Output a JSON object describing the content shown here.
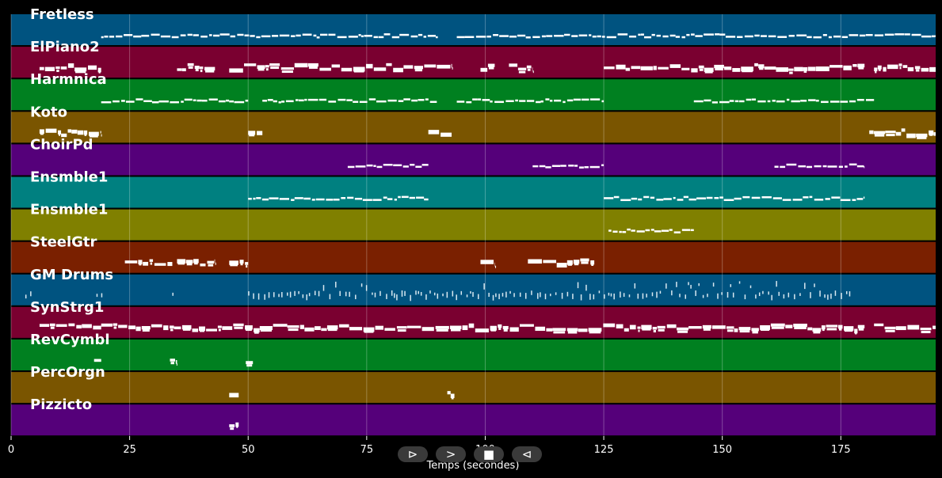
{
  "chart_data": {
    "type": "piano-roll",
    "xlabel": "Temps (secondes)",
    "xlim": [
      0,
      195
    ],
    "xticks": [
      0,
      25,
      50,
      75,
      100,
      125,
      150,
      175
    ],
    "xtick_labels": [
      "0",
      "25",
      "50",
      "75",
      "100",
      "125",
      "150",
      "175"
    ],
    "grid": "vertical",
    "tracks": [
      {
        "name": "Fretless",
        "color": "#005380",
        "density": "sparse",
        "segments": [
          [
            19,
            90
          ],
          [
            94,
            195
          ]
        ]
      },
      {
        "name": "ElPiano2",
        "color": "#7a0030",
        "density": "dense",
        "segments": [
          [
            6,
            19
          ],
          [
            35,
            43
          ],
          [
            46,
            93
          ],
          [
            99,
            102
          ],
          [
            105,
            110
          ],
          [
            125,
            180
          ],
          [
            182,
            195
          ]
        ]
      },
      {
        "name": "Harmnica",
        "color": "#008020",
        "density": "sparse",
        "segments": [
          [
            19,
            50
          ],
          [
            53,
            90
          ],
          [
            94,
            125
          ],
          [
            144,
            182
          ]
        ]
      },
      {
        "name": "Koto",
        "color": "#7a5500",
        "density": "dense",
        "segments": [
          [
            6,
            19
          ],
          [
            50,
            53
          ],
          [
            88,
            93
          ],
          [
            181,
            195
          ]
        ]
      },
      {
        "name": "ChoirPd",
        "color": "#55007a",
        "density": "sparse",
        "segments": [
          [
            71,
            88
          ],
          [
            110,
            125
          ],
          [
            161,
            180
          ]
        ]
      },
      {
        "name": "Ensmble1",
        "color": "#008080",
        "density": "sparse",
        "segments": [
          [
            50,
            88
          ],
          [
            125,
            180
          ]
        ]
      },
      {
        "name": "Ensmble1",
        "color": "#808000",
        "density": "sparse",
        "segments": [
          [
            126,
            144
          ]
        ]
      },
      {
        "name": "SteelGtr",
        "color": "#7a2000",
        "density": "dense",
        "segments": [
          [
            24,
            34
          ],
          [
            35,
            43
          ],
          [
            46,
            50
          ],
          [
            99,
            102
          ],
          [
            109,
            123
          ]
        ]
      },
      {
        "name": "GM Drums",
        "color": "#005380",
        "density": "drums",
        "segments": [
          [
            3,
            5
          ],
          [
            18,
            19
          ],
          [
            34,
            35
          ],
          [
            50,
            92
          ],
          [
            93,
            125
          ],
          [
            125,
            177
          ]
        ]
      },
      {
        "name": "SynStrg1",
        "color": "#7a0030",
        "density": "dense",
        "segments": [
          [
            6,
            19
          ],
          [
            19,
            180
          ],
          [
            182,
            195
          ]
        ]
      },
      {
        "name": "RevCymbl",
        "color": "#008020",
        "density": "dense",
        "segments": [
          [
            17.5,
            19
          ],
          [
            33.5,
            35
          ],
          [
            49.5,
            51
          ]
        ]
      },
      {
        "name": "PercOrgn",
        "color": "#7a5500",
        "density": "dense",
        "segments": [
          [
            46,
            48
          ],
          [
            92,
            93.5
          ]
        ]
      },
      {
        "name": "Pizzicto",
        "color": "#55007a",
        "density": "dense",
        "segments": [
          [
            46,
            48
          ]
        ]
      }
    ]
  },
  "controls": [
    {
      "name": "play-forward-button",
      "glyph": "⊳"
    },
    {
      "name": "next-button",
      "glyph": ">"
    },
    {
      "name": "stop-button",
      "glyph": "■"
    },
    {
      "name": "rewind-button",
      "glyph": "⊲"
    }
  ]
}
